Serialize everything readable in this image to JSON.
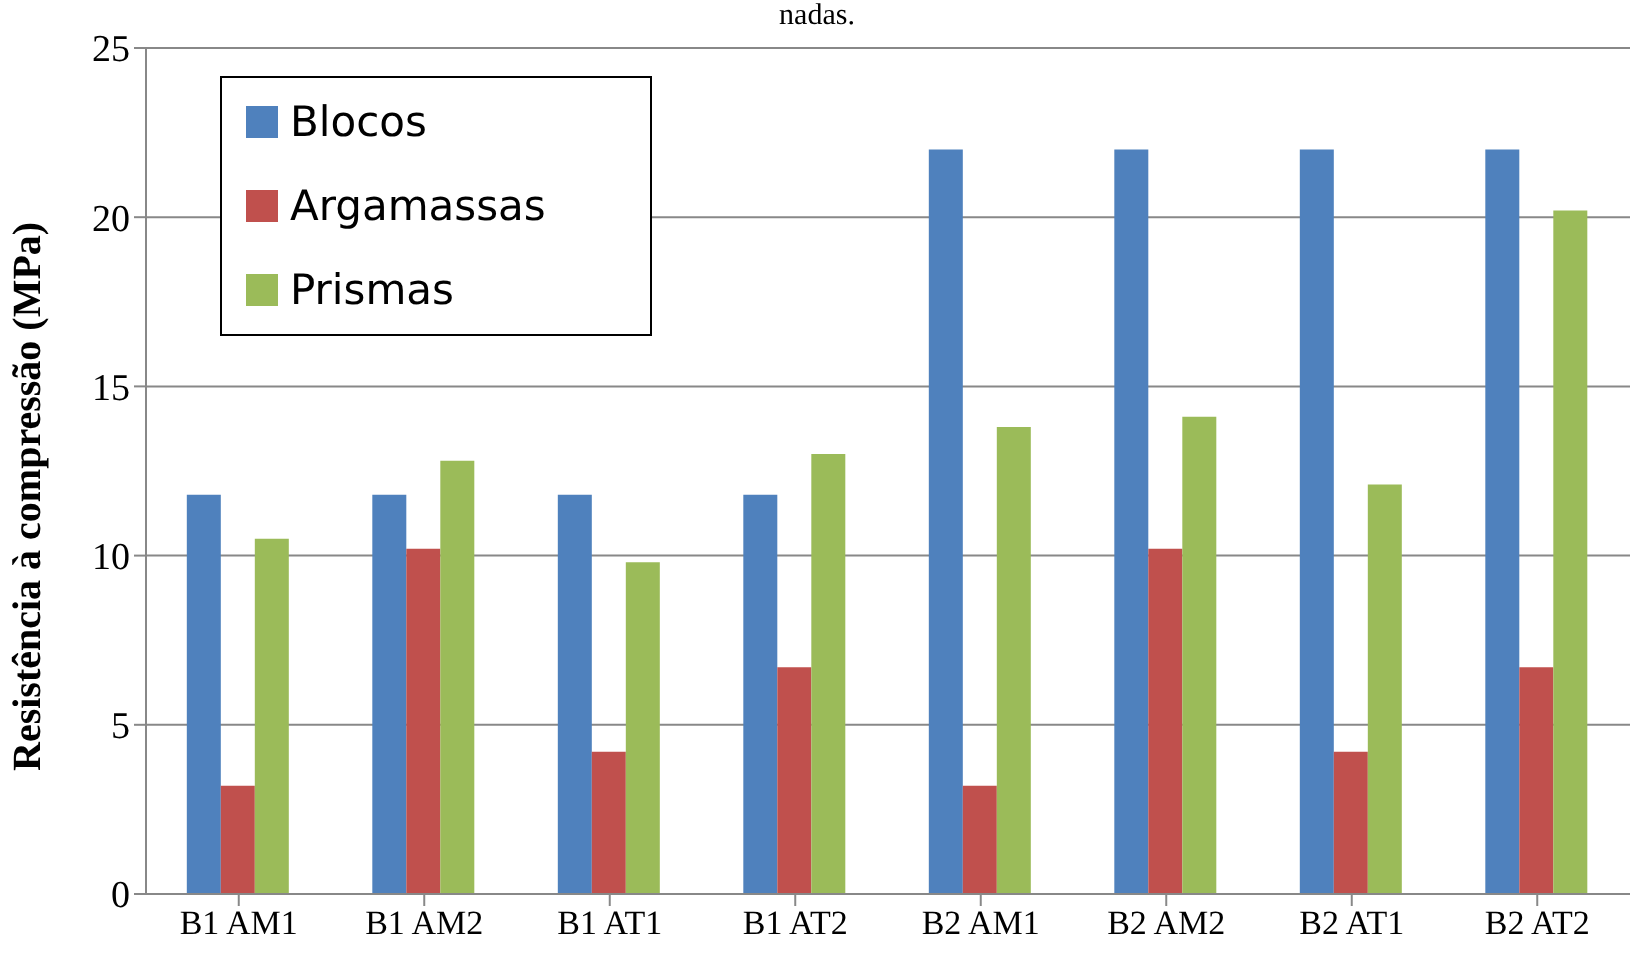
{
  "chart_data": {
    "type": "bar",
    "ylabel": "Resistência à compressão (MPa)",
    "annotations": [
      "nadas."
    ],
    "categories": [
      "B1 AM1",
      "B1 AM2",
      "B1 AT1",
      "B1 AT2",
      "B2 AM1",
      "B2 AM2",
      "B2 AT1",
      "B2 AT2"
    ],
    "series": [
      {
        "name": "Blocos",
        "color": "#4f81bd",
        "values": [
          11.8,
          11.8,
          11.8,
          11.8,
          22,
          22,
          22,
          22
        ]
      },
      {
        "name": "Argamassas",
        "color": "#c0504d",
        "values": [
          3.2,
          10.2,
          4.2,
          6.7,
          3.2,
          10.2,
          4.2,
          6.7
        ]
      },
      {
        "name": "Prismas",
        "color": "#9bbb59",
        "values": [
          10.5,
          12.8,
          9.8,
          13.0,
          13.8,
          14.1,
          12.1,
          20.2
        ]
      }
    ],
    "ylim": [
      0,
      25
    ],
    "yticks": [
      0,
      5,
      10,
      15,
      20,
      25
    ],
    "grid": "y",
    "legend": "top left"
  }
}
